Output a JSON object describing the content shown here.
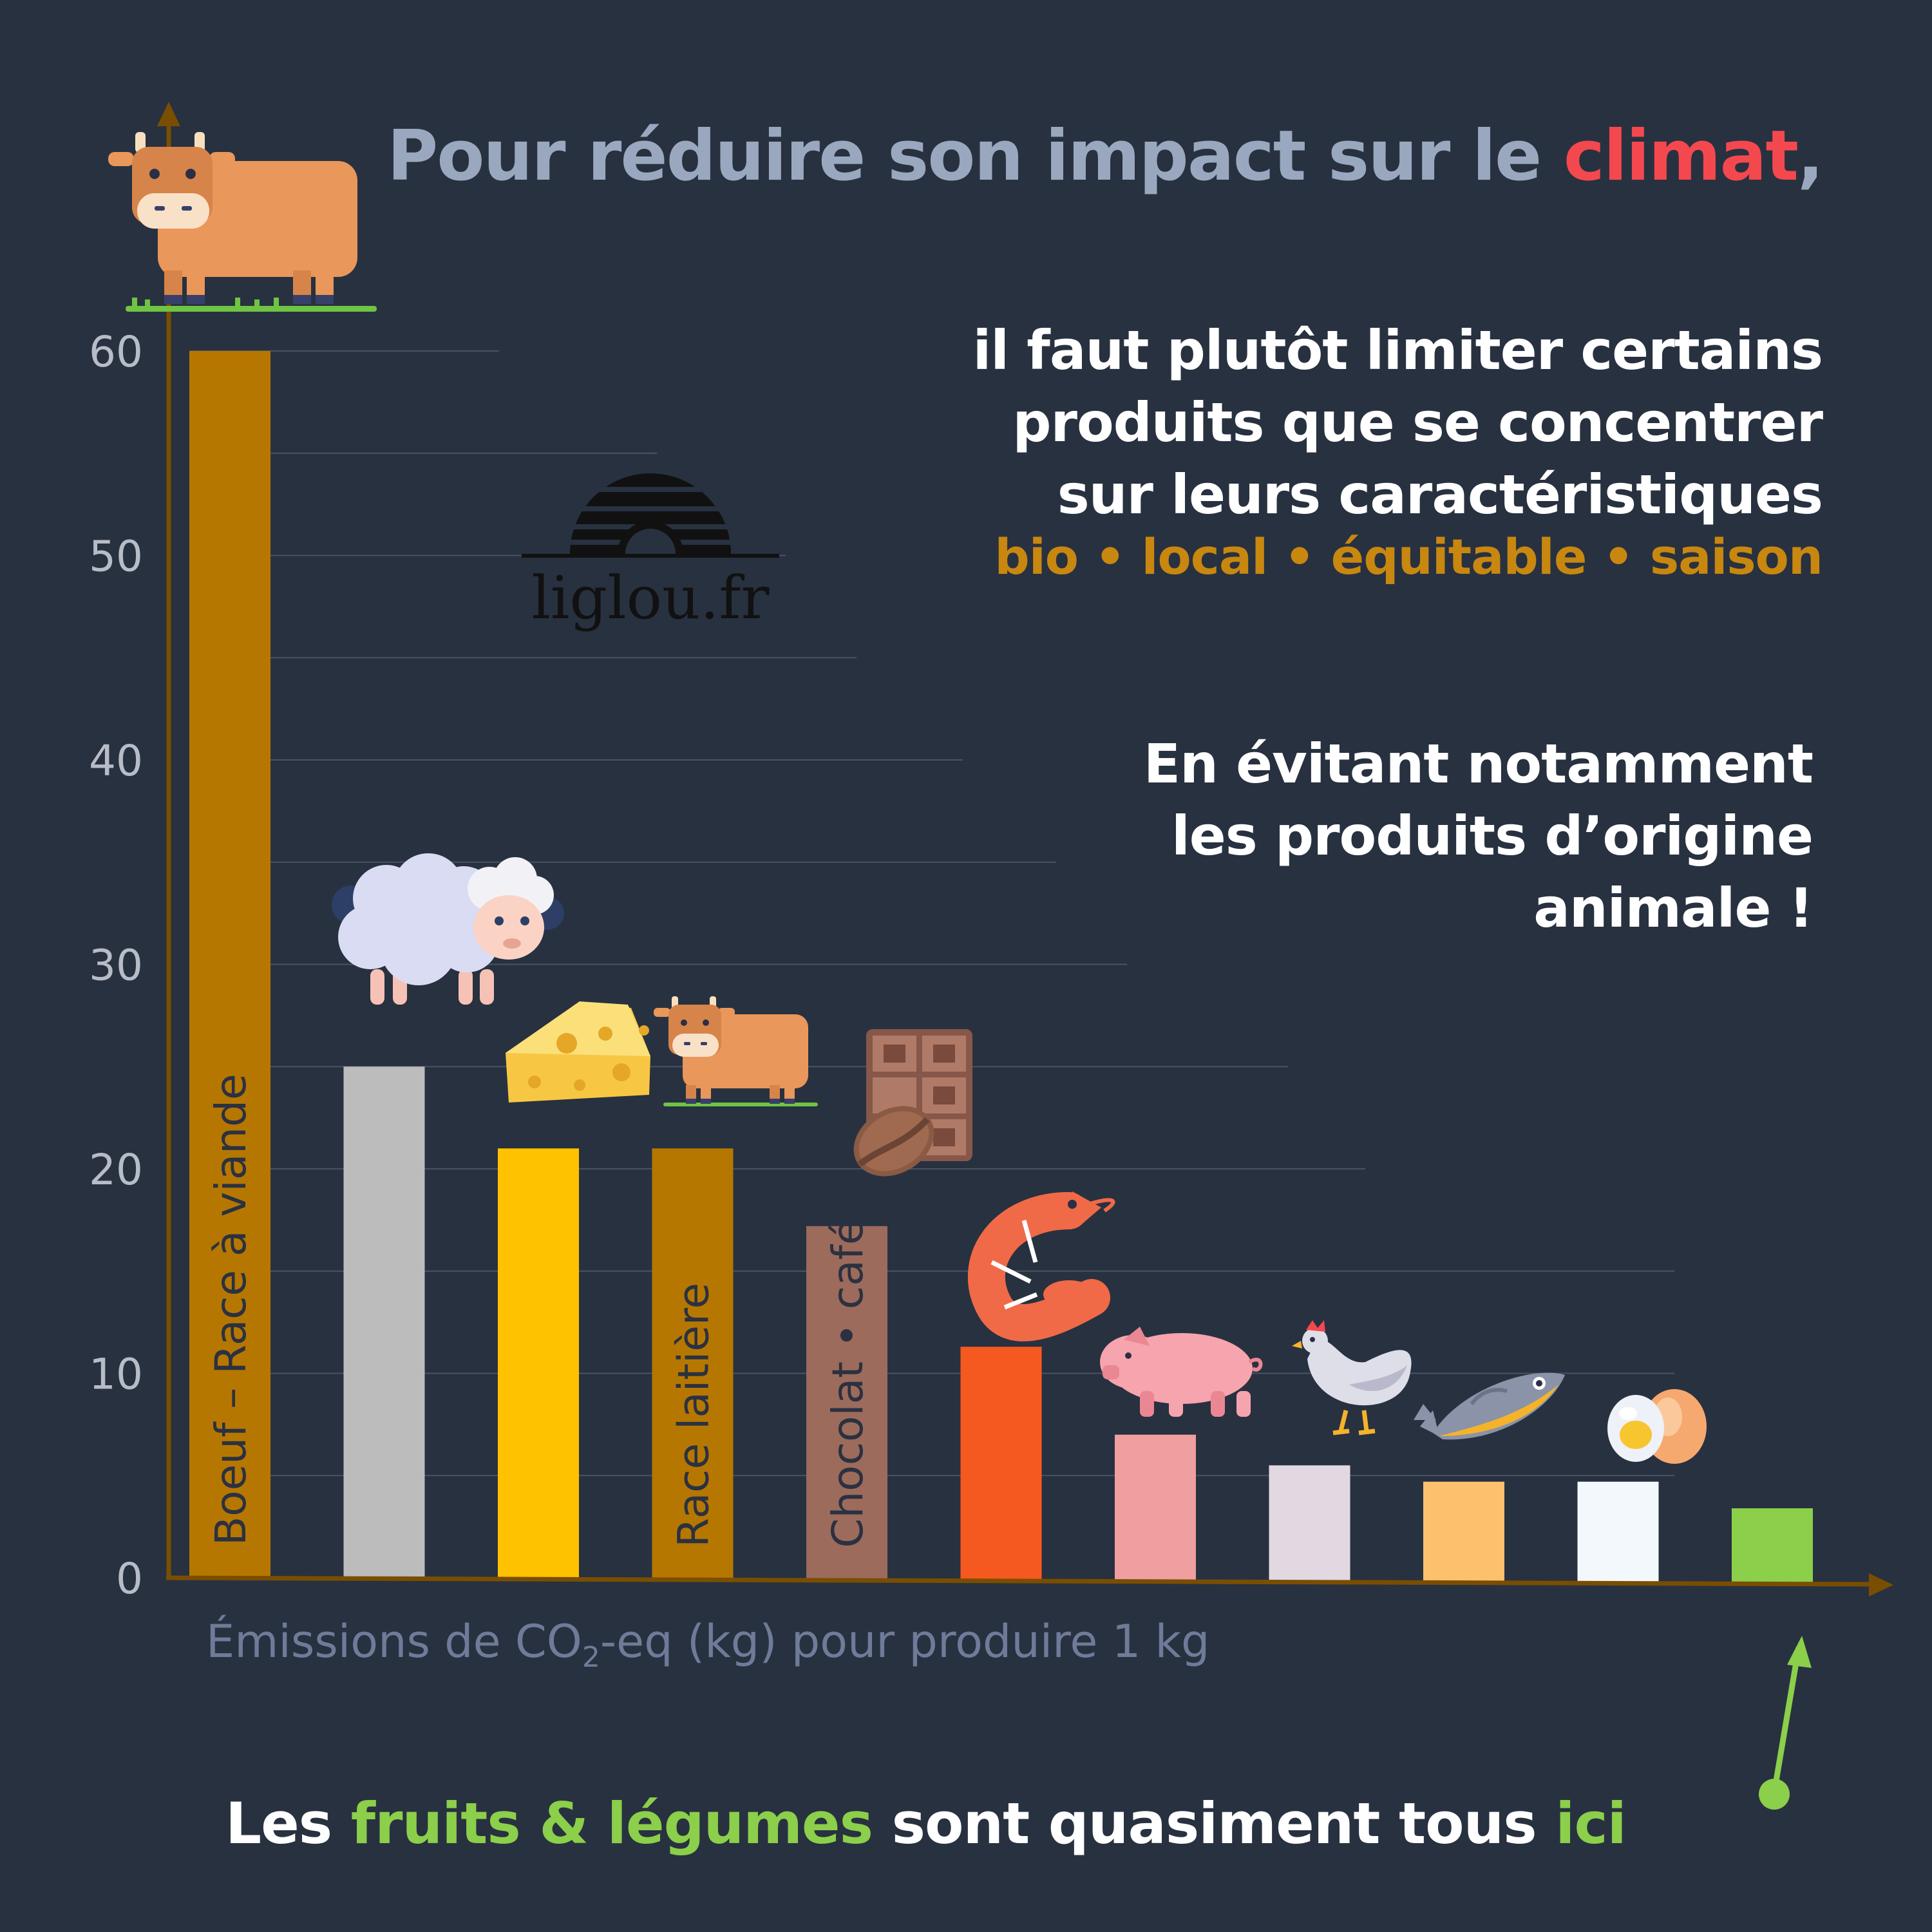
{
  "title": {
    "prefix": "Pour réduire son impact sur le ",
    "accent": "climat",
    "suffix": ","
  },
  "note1": {
    "lines": [
      "il faut plutôt limiter certains",
      "produits que se concentrer",
      "sur leurs caractéristiques"
    ]
  },
  "tags": "bio • local • équitable • saison",
  "note2": {
    "lines": [
      "En évitant notamment",
      "les produits d’origine",
      "animale !"
    ]
  },
  "logo": {
    "text": "liglou.fr"
  },
  "axis_label": {
    "before": "Émissions de CO",
    "sub": "2",
    "after": "-eq (kg) pour produire 1 kg"
  },
  "footer": {
    "p1": "Les ",
    "p2": "fruits & légumes",
    "p3": " sont quasiment tous ",
    "p4": "ici"
  },
  "colors": {
    "background": "#283140",
    "axis": "#7a4e00",
    "grid": "#4a5363",
    "accent_red": "#f4484f",
    "accent_orange": "#c8870f",
    "accent_green": "#8bcf4a"
  },
  "chart_data": {
    "type": "bar",
    "ylim": [
      0,
      60
    ],
    "yticks": [
      "0",
      "10",
      "20",
      "30",
      "40",
      "50",
      "60"
    ],
    "grid": true,
    "series": [
      {
        "values": [
          60,
          25,
          21,
          21,
          17.2,
          11.3,
          7,
          5.5,
          4.7,
          4.7,
          3.4
        ],
        "bar_labels": [
          "Boeuf – Race à viande",
          "",
          "",
          "Race laitière",
          "Chocolat • café",
          "",
          "",
          "",
          "",
          "",
          ""
        ],
        "icons": [
          "beef-cow-icon",
          "sheep-icon",
          "cheese-icon",
          "dairy-cow-icon",
          "chocolate-coffee-icon",
          "shrimp-icon",
          "pig-icon",
          "chicken-icon",
          "fish-icon",
          "eggs-icon",
          "vegetables-bar"
        ],
        "colors": [
          "#b67700",
          "#bcbcbc",
          "#ffc200",
          "#b67700",
          "#9c6b5c",
          "#f65920",
          "#ef9fa0",
          "#e2d8e2",
          "#fdc16d",
          "#f2f8fb",
          "#8bcf4a"
        ]
      }
    ]
  }
}
